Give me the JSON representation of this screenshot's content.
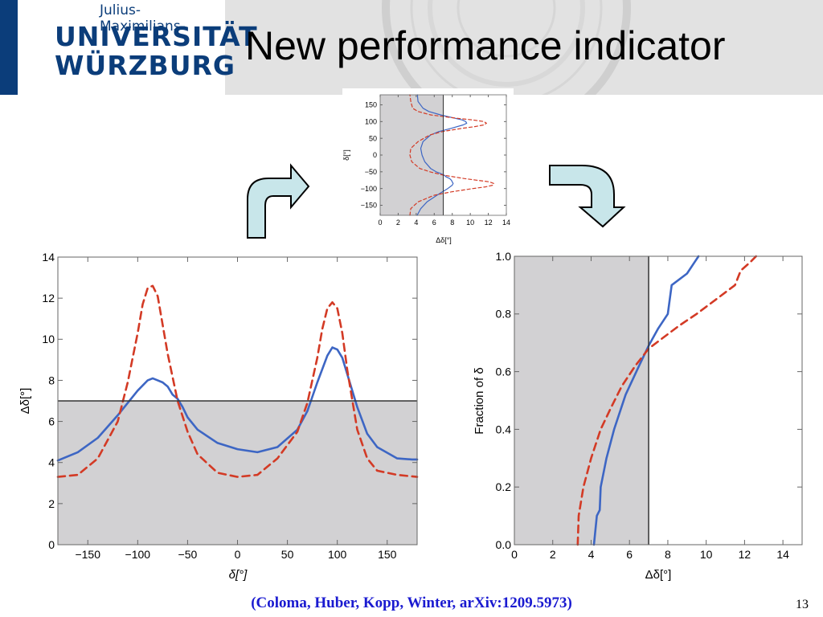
{
  "header": {
    "logo": {
      "subtitle": "Julius-Maximilians-",
      "line1": "UNIVERSITÄT",
      "line2": "WÜRZBURG",
      "brand_color": "#0b3d7a"
    },
    "title": "New performance indicator"
  },
  "footer": {
    "citation": "(Coloma, Huber, Kopp, Winter, arXiv:1209.5973)",
    "page_number": "13"
  },
  "colors": {
    "solid_series": "#3d66c4",
    "dashed_series": "#d33a25",
    "shade": "#d2d1d3",
    "arrow_fill": "#c8e6ea"
  },
  "chart_data": [
    {
      "type": "line",
      "panel": "main-left",
      "xlabel": "δ[°]",
      "ylabel": "Δδ[°]",
      "xlim": [
        -180,
        180
      ],
      "ylim": [
        0,
        14
      ],
      "xticks": [
        "-150",
        "-100",
        "-50",
        "0",
        "50",
        "100",
        "150"
      ],
      "yticks": [
        "0",
        "2",
        "4",
        "6",
        "8",
        "10",
        "12",
        "14"
      ],
      "threshold": 7,
      "shaded": "below threshold",
      "series": [
        {
          "style": "solid",
          "color": "#3d66c4",
          "x": [
            -180,
            -160,
            -140,
            -120,
            -110,
            -100,
            -90,
            -85,
            -80,
            -75,
            -70,
            -65,
            -60,
            -55,
            -50,
            -40,
            -20,
            0,
            20,
            40,
            60,
            70,
            80,
            90,
            95,
            100,
            105,
            110,
            120,
            130,
            140,
            160,
            175,
            180
          ],
          "y": [
            4.1,
            4.5,
            5.2,
            6.3,
            6.9,
            7.5,
            8.0,
            8.1,
            8.0,
            7.9,
            7.7,
            7.3,
            7.1,
            6.7,
            6.2,
            5.6,
            4.95,
            4.65,
            4.5,
            4.75,
            5.6,
            6.5,
            7.9,
            9.2,
            9.6,
            9.5,
            9.1,
            8.3,
            6.7,
            5.4,
            4.75,
            4.2,
            4.15,
            4.15
          ]
        },
        {
          "style": "dashed",
          "color": "#d33a25",
          "x": [
            -180,
            -160,
            -140,
            -120,
            -110,
            -100,
            -95,
            -90,
            -85,
            -80,
            -75,
            -70,
            -60,
            -50,
            -40,
            -20,
            0,
            20,
            40,
            60,
            70,
            80,
            85,
            90,
            95,
            100,
            105,
            110,
            120,
            130,
            140,
            160,
            180
          ],
          "y": [
            3.3,
            3.4,
            4.2,
            6.0,
            7.9,
            10.3,
            11.7,
            12.5,
            12.6,
            12.1,
            10.7,
            9.3,
            7.0,
            5.5,
            4.4,
            3.5,
            3.3,
            3.4,
            4.2,
            5.5,
            6.9,
            9.1,
            10.5,
            11.5,
            11.8,
            11.5,
            10.3,
            8.5,
            5.6,
            4.2,
            3.6,
            3.4,
            3.3
          ]
        }
      ]
    },
    {
      "type": "line",
      "panel": "main-right",
      "xlabel": "Δδ[°]",
      "ylabel": "Fraction  of  δ",
      "xlim": [
        0,
        15
      ],
      "ylim": [
        0,
        1
      ],
      "xticks": [
        "0",
        "2",
        "4",
        "6",
        "8",
        "10",
        "12",
        "14"
      ],
      "yticks": [
        "0.0",
        "0.2",
        "0.4",
        "0.6",
        "0.8",
        "1.0"
      ],
      "threshold": 7,
      "shaded": "left of threshold",
      "series": [
        {
          "style": "solid",
          "color": "#3d66c4",
          "x": [
            4.15,
            4.3,
            4.45,
            4.5,
            4.8,
            5.2,
            5.8,
            6.5,
            7.0,
            7.5,
            8.0,
            8.2,
            9.0,
            9.4,
            9.6
          ],
          "y": [
            0.0,
            0.1,
            0.12,
            0.2,
            0.3,
            0.4,
            0.52,
            0.62,
            0.69,
            0.75,
            0.8,
            0.9,
            0.94,
            0.98,
            1.0
          ]
        },
        {
          "style": "dashed",
          "color": "#d33a25",
          "x": [
            3.3,
            3.35,
            3.6,
            4.0,
            4.5,
            5.0,
            5.6,
            6.3,
            7.0,
            7.8,
            8.6,
            9.5,
            10.5,
            11.5,
            11.8,
            12.3,
            12.6
          ],
          "y": [
            0.0,
            0.1,
            0.2,
            0.3,
            0.4,
            0.47,
            0.55,
            0.62,
            0.68,
            0.72,
            0.76,
            0.8,
            0.85,
            0.9,
            0.95,
            0.98,
            1.0
          ]
        }
      ]
    },
    {
      "type": "line",
      "panel": "inset-top",
      "xlabel": "Δδ[°]",
      "ylabel": "δ[°]",
      "xlim": [
        0,
        14
      ],
      "ylim": [
        -180,
        180
      ],
      "xticks": [
        "0",
        "2",
        "4",
        "6",
        "8",
        "10",
        "12",
        "14"
      ],
      "yticks": [
        "-150",
        "-100",
        "-50",
        "0",
        "50",
        "100",
        "150"
      ],
      "threshold": 7,
      "shaded": "left of threshold",
      "series": [
        {
          "style": "solid",
          "color": "#3d66c4",
          "y": [
            -180,
            -160,
            -140,
            -120,
            -110,
            -100,
            -90,
            -85,
            -80,
            -75,
            -70,
            -65,
            -60,
            -55,
            -50,
            -40,
            -20,
            0,
            20,
            40,
            60,
            70,
            80,
            90,
            95,
            100,
            105,
            110,
            120,
            130,
            140,
            160,
            175,
            180
          ],
          "x": [
            4.1,
            4.5,
            5.2,
            6.3,
            6.9,
            7.5,
            8.0,
            8.1,
            8.0,
            7.9,
            7.7,
            7.3,
            7.1,
            6.7,
            6.2,
            5.6,
            4.95,
            4.65,
            4.5,
            4.75,
            5.6,
            6.5,
            7.9,
            9.2,
            9.6,
            9.5,
            9.1,
            8.3,
            6.7,
            5.4,
            4.75,
            4.2,
            4.15,
            4.15
          ]
        },
        {
          "style": "dashed",
          "color": "#d33a25",
          "y": [
            -180,
            -160,
            -140,
            -120,
            -110,
            -100,
            -95,
            -90,
            -85,
            -80,
            -75,
            -70,
            -60,
            -50,
            -40,
            -20,
            0,
            20,
            40,
            60,
            70,
            80,
            85,
            90,
            95,
            100,
            105,
            110,
            120,
            130,
            140,
            160,
            180
          ],
          "x": [
            3.3,
            3.4,
            4.2,
            6.0,
            7.9,
            10.3,
            11.7,
            12.5,
            12.6,
            12.1,
            10.7,
            9.3,
            7.0,
            5.5,
            4.4,
            3.5,
            3.3,
            3.4,
            4.2,
            5.5,
            6.9,
            9.1,
            10.5,
            11.5,
            11.8,
            11.5,
            10.3,
            8.5,
            5.6,
            4.2,
            3.6,
            3.4,
            3.3
          ]
        }
      ]
    }
  ]
}
